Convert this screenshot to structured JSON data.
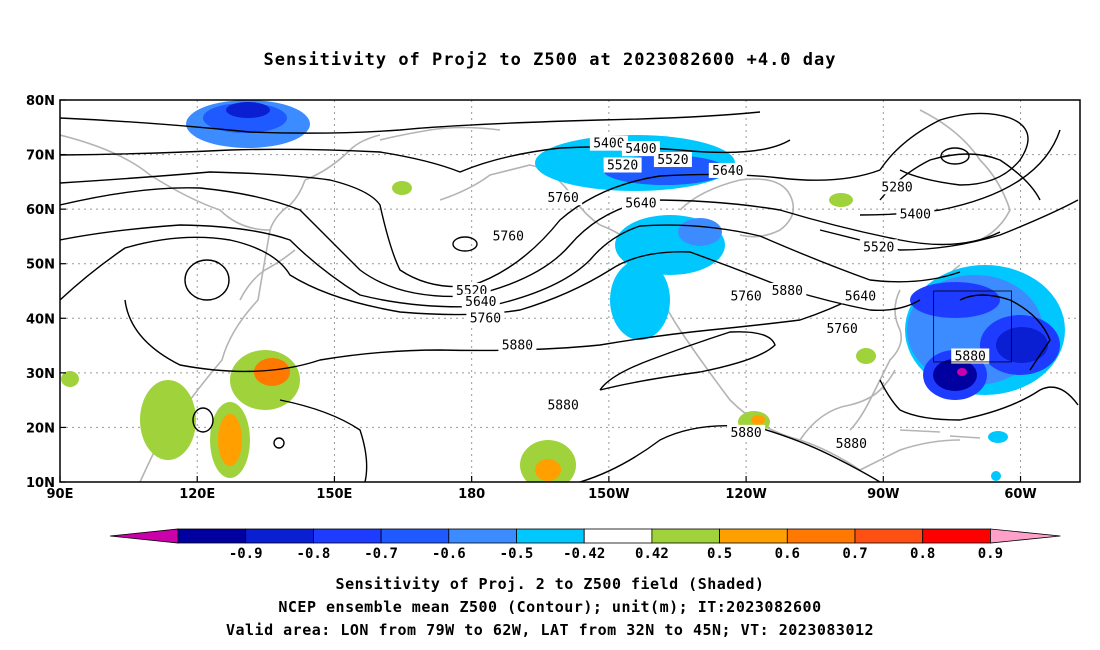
{
  "title": "Sensitivity of Proj2 to Z500 at 2023082600 +4.0 day",
  "axes": {
    "lat_labels": [
      "80N",
      "70N",
      "60N",
      "50N",
      "40N",
      "30N",
      "20N",
      "10N"
    ],
    "lon_labels": [
      "90E",
      "120E",
      "150E",
      "180",
      "150W",
      "120W",
      "90W",
      "60W"
    ]
  },
  "contour_labels": [
    {
      "text": "5400",
      "lon": -150,
      "lat": 72
    },
    {
      "text": "5400",
      "lon": -143,
      "lat": 71
    },
    {
      "text": "5520",
      "lon": -136,
      "lat": 69
    },
    {
      "text": "5520",
      "lon": -147,
      "lat": 68
    },
    {
      "text": "5640",
      "lon": -143,
      "lat": 61
    },
    {
      "text": "5640",
      "lon": -124,
      "lat": 67
    },
    {
      "text": "5760",
      "lon": -160,
      "lat": 62
    },
    {
      "text": "5760",
      "lon": -172,
      "lat": 55
    },
    {
      "text": "5520",
      "lon": -180,
      "lat": 45
    },
    {
      "text": "5640",
      "lon": -178,
      "lat": 43
    },
    {
      "text": "5760",
      "lon": -177,
      "lat": 40
    },
    {
      "text": "5880",
      "lon": -170,
      "lat": 35
    },
    {
      "text": "5880",
      "lon": -160,
      "lat": 24
    },
    {
      "text": "5760",
      "lon": -120,
      "lat": 44
    },
    {
      "text": "5880",
      "lon": -111,
      "lat": 45
    },
    {
      "text": "5880",
      "lon": -120,
      "lat": 19
    },
    {
      "text": "5880",
      "lon": -97,
      "lat": 17
    },
    {
      "text": "5280",
      "lon": -87,
      "lat": 64
    },
    {
      "text": "5400",
      "lon": -83,
      "lat": 59
    },
    {
      "text": "5520",
      "lon": -91,
      "lat": 53
    },
    {
      "text": "5640",
      "lon": -95,
      "lat": 44
    },
    {
      "text": "5760",
      "lon": -99,
      "lat": 38
    },
    {
      "text": "5880",
      "lon": -71,
      "lat": 33
    }
  ],
  "colorbar": {
    "colors": [
      "#cc00aa",
      "#0000a0",
      "#0a1ed2",
      "#1e3cff",
      "#1e5aff",
      "#3c8cff",
      "#00c8ff",
      "#ffffff",
      "#a0d23c",
      "#ffa000",
      "#ff7800",
      "#ff5014",
      "#ff0000",
      "#ffa0c8"
    ],
    "tick_labels": [
      "-0.9",
      "-0.8",
      "-0.7",
      "-0.6",
      "-0.5",
      "-0.42",
      "0.42",
      "0.5",
      "0.6",
      "0.7",
      "0.8",
      "0.9"
    ]
  },
  "valid_box": {
    "lon_min": -79,
    "lon_max": -62,
    "lat_min": 32,
    "lat_max": 45
  },
  "captions": [
    "Sensitivity of Proj. 2 to Z500 field (Shaded)",
    "NCEP ensemble mean Z500 (Contour); unit(m); IT:2023082600",
    "Valid area: LON from 79W to 62W, LAT from 32N to 45N; VT: 2023083012"
  ]
}
